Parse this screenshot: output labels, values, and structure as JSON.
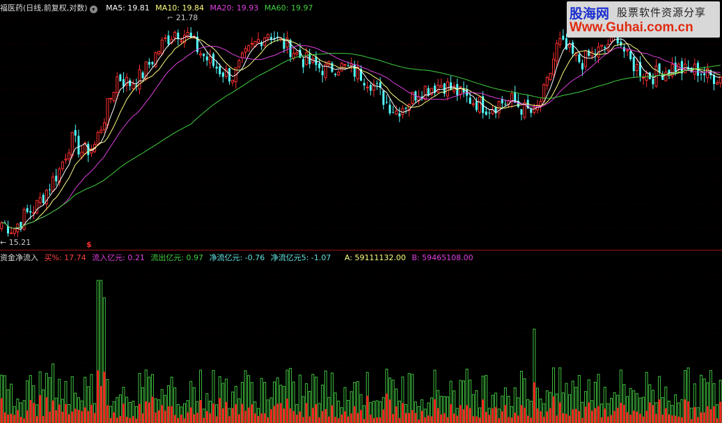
{
  "header": {
    "title": "福医药(日线,前复权,对数)",
    "ma": [
      {
        "label": "MA5: 19.81",
        "color": "#ffffff"
      },
      {
        "label": "MA10: 19.84",
        "color": "#ffff80"
      },
      {
        "label": "MA20: 19.93",
        "color": "#e040e0"
      },
      {
        "label": "MA60: 19.97",
        "color": "#40d040"
      }
    ]
  },
  "indicator": {
    "title": "资金净流入",
    "items": [
      {
        "label": "买%: 17.74",
        "color": "#ff4040"
      },
      {
        "label": "流入亿元: 0.21",
        "color": "#e040e0"
      },
      {
        "label": "流出亿元: 0.97",
        "color": "#40d040"
      },
      {
        "label": "净流亿元: -0.76",
        "color": "#60e0e0"
      },
      {
        "label": "净流亿元5: -1.07",
        "color": "#60e0e0"
      },
      {
        "label": "A: 59111132.00",
        "color": "#ffff80"
      },
      {
        "label": "B: 59465108.00",
        "color": "#e040e0"
      }
    ],
    "marker": "$"
  },
  "logo": {
    "cn": "股海网",
    "slogan": "股票软件资源分享",
    "url": "Www.Guhai.com.cn"
  },
  "chart_data": {
    "type": "candlestick",
    "scale": "log",
    "high_label": "21.78",
    "low_label": "15.21",
    "price_range": [
      15.21,
      21.78
    ],
    "close_path": [
      15.48,
      15.3,
      15.66,
      15.9,
      16.4,
      16.9,
      17.78,
      17.4,
      17.58,
      18.6,
      19.74,
      19.5,
      19.74,
      20.3,
      20.91,
      21.3,
      21.16,
      20.6,
      20.2,
      19.9,
      19.74,
      20.4,
      20.91,
      21.28,
      20.9,
      20.67,
      20.3,
      20.08,
      19.97,
      20.1,
      19.97,
      19.8,
      19.51,
      19.0,
      18.63,
      18.9,
      19.29,
      19.4,
      19.51,
      19.3,
      19.06,
      18.9,
      18.73,
      18.9,
      18.95,
      18.7,
      18.52,
      19.4,
      20.91,
      20.5,
      20.2,
      20.5,
      20.67,
      21.28,
      20.3,
      19.97,
      19.74,
      19.9,
      20.08,
      19.9,
      19.97,
      19.74,
      19.74
    ],
    "colors": {
      "up": "#ff3030",
      "down": "#54ffff",
      "ma5": "#ffffff",
      "ma10": "#ffff80",
      "ma20": "#e040e0",
      "ma60": "#40d040",
      "vol_up": "#ff2020",
      "vol_down": "#40c040"
    }
  }
}
